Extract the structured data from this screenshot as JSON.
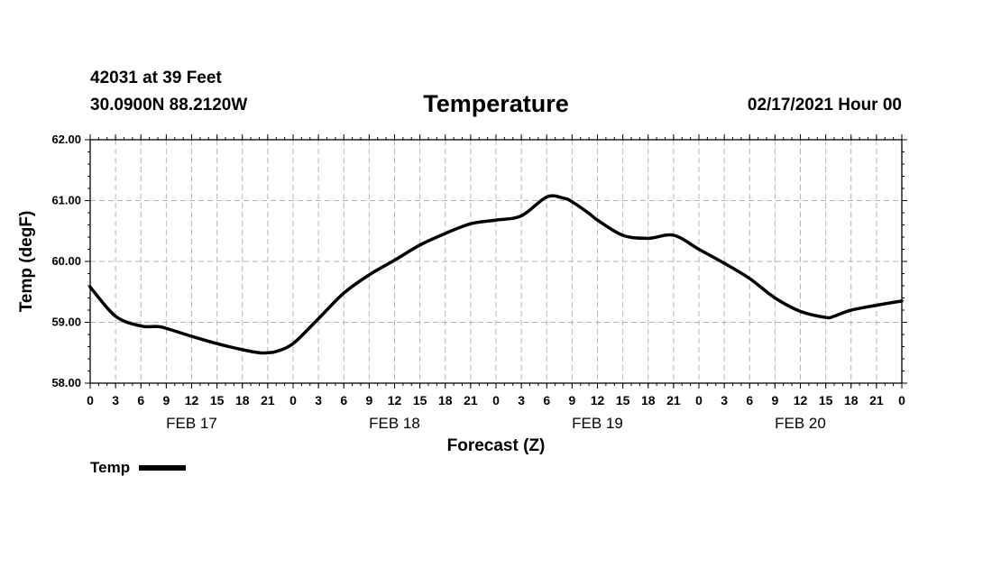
{
  "header": {
    "station": "42031 at 39 Feet",
    "coords": "30.0900N 88.2120W",
    "run_time": "02/17/2021 Hour 00"
  },
  "chart_data": {
    "type": "line",
    "title": "Temperature",
    "xlabel": "Forecast (Z)",
    "ylabel": "Temp (degF)",
    "ylim": [
      58.0,
      62.0
    ],
    "yticks": [
      "58.00",
      "59.00",
      "60.00",
      "61.00",
      "62.00"
    ],
    "xlim": [
      0,
      96
    ],
    "xtick_labels": [
      "0",
      "3",
      "6",
      "9",
      "12",
      "15",
      "18",
      "21",
      "0",
      "3",
      "6",
      "9",
      "12",
      "15",
      "18",
      "21",
      "0",
      "3",
      "6",
      "9",
      "12",
      "15",
      "18",
      "21",
      "0",
      "3",
      "6",
      "9",
      "12",
      "15",
      "18",
      "21",
      "0"
    ],
    "day_labels": [
      {
        "label": "FEB 17",
        "hour": 12
      },
      {
        "label": "FEB 18",
        "hour": 36
      },
      {
        "label": "FEB 19",
        "hour": 60
      },
      {
        "label": "FEB 20",
        "hour": 84
      }
    ],
    "grid": true,
    "legend": "bottom-left",
    "series": [
      {
        "name": "Temp",
        "color": "#000000",
        "x": [
          0,
          3,
          6,
          8,
          9,
          12,
          15,
          18,
          20,
          21,
          22,
          24,
          27,
          30,
          33,
          36,
          39,
          42,
          45,
          48,
          51,
          54,
          56,
          57,
          59,
          60,
          63,
          66,
          69,
          72,
          75,
          78,
          81,
          84,
          87,
          88,
          90,
          93,
          96
        ],
        "y": [
          59.58,
          59.1,
          58.94,
          58.93,
          58.9,
          58.77,
          58.65,
          58.55,
          58.5,
          58.5,
          58.52,
          58.65,
          59.06,
          59.48,
          59.78,
          60.02,
          60.27,
          60.46,
          60.62,
          60.68,
          60.75,
          61.06,
          61.04,
          60.98,
          60.79,
          60.68,
          60.43,
          60.38,
          60.43,
          60.2,
          59.97,
          59.72,
          59.4,
          59.18,
          59.08,
          59.1,
          59.2,
          59.28,
          59.35
        ]
      }
    ]
  }
}
